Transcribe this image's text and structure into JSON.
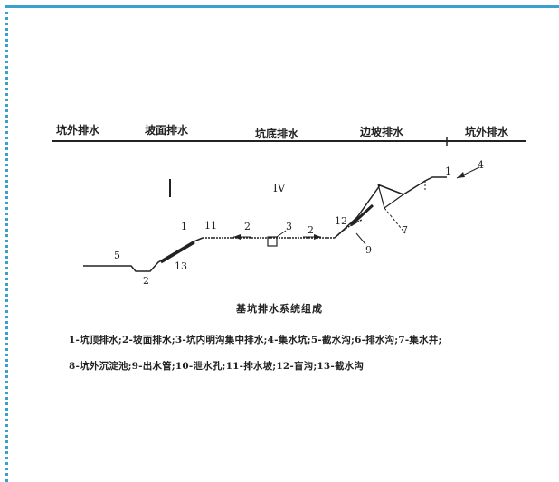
{
  "zones": [
    {
      "label": "坑外排水"
    },
    {
      "label": "坡面排水"
    },
    {
      "label": "坑底排水"
    },
    {
      "label": "边坡排水"
    },
    {
      "label": "坑外排水"
    }
  ],
  "zone_markers": {
    "left": "I",
    "right": "IV"
  },
  "numbers": {
    "n1": "1",
    "n2": "2",
    "n3": "3",
    "n4": "4",
    "n5": "5",
    "n7": "7",
    "n9": "9",
    "n11": "11",
    "n12": "12",
    "n13": "13"
  },
  "caption": "基坑排水系统组成",
  "legend": {
    "line1": "1-坑顶排水;2-坡面排水;3-坑内明沟集中排水;4-集水坑;5-截水沟;6-排水沟;7-集水井;",
    "line2": "8-坑外沉淀池;9-出水管;10-泄水孔;11-排水坡;12-盲沟;13-截水沟"
  },
  "colors": {
    "border": "#3aa0d0",
    "ink": "#222222"
  }
}
